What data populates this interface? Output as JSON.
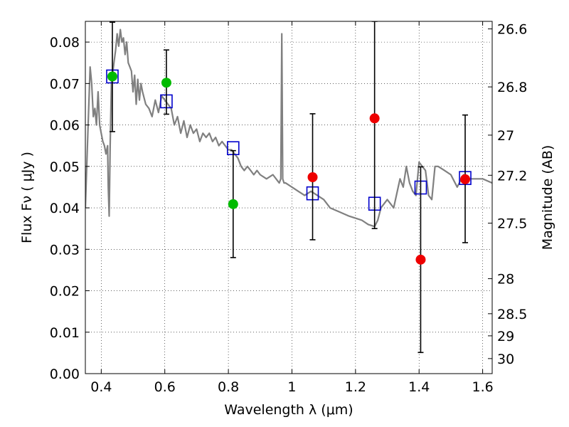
{
  "chart_data": {
    "type": "scatter",
    "xlabel": "Wavelength  λ (μm)",
    "ylabel": "Flux  Fν  ( μJy )",
    "y2label": "Magnitude (AB)",
    "xlim": [
      0.35,
      1.63
    ],
    "ylim": [
      0.0,
      0.085
    ],
    "grid": true,
    "x_ticks": [
      0.4,
      0.6,
      0.8,
      1.0,
      1.2,
      1.4,
      1.6
    ],
    "x_tick_labels": [
      "0.4",
      "0.6",
      "0.8",
      "1",
      "1.2",
      "1.4",
      "1.6"
    ],
    "y_ticks": [
      0.0,
      0.01,
      0.02,
      0.03,
      0.04,
      0.05,
      0.06,
      0.07,
      0.08
    ],
    "y_tick_labels": [
      "0.00",
      "0.01",
      "0.02",
      "0.03",
      "0.04",
      "0.05",
      "0.06",
      "0.07",
      "0.08"
    ],
    "mag_ticks": [
      26.6,
      26.8,
      27,
      27.2,
      27.5,
      28,
      28.5,
      29,
      30
    ],
    "mag_tick_labels": [
      "26.6",
      "26.8",
      "27",
      "27.2",
      "27.5",
      "28",
      "28.5",
      "29",
      "30"
    ],
    "series": [
      {
        "kind": "line",
        "color": "#808080",
        "x": [
          0.35,
          0.36,
          0.365,
          0.37,
          0.375,
          0.38,
          0.385,
          0.39,
          0.395,
          0.4,
          0.405,
          0.41,
          0.415,
          0.42,
          0.422,
          0.425,
          0.428,
          0.432,
          0.44,
          0.445,
          0.45,
          0.455,
          0.46,
          0.465,
          0.47,
          0.475,
          0.48,
          0.485,
          0.49,
          0.495,
          0.5,
          0.505,
          0.51,
          0.515,
          0.52,
          0.525,
          0.53,
          0.54,
          0.55,
          0.56,
          0.57,
          0.58,
          0.59,
          0.6,
          0.61,
          0.62,
          0.63,
          0.64,
          0.65,
          0.66,
          0.67,
          0.68,
          0.69,
          0.7,
          0.71,
          0.72,
          0.73,
          0.74,
          0.75,
          0.76,
          0.77,
          0.78,
          0.79,
          0.8,
          0.81,
          0.82,
          0.83,
          0.84,
          0.85,
          0.86,
          0.87,
          0.88,
          0.89,
          0.9,
          0.92,
          0.94,
          0.96,
          0.965,
          0.968,
          0.971,
          0.975,
          0.98,
          1.0,
          1.02,
          1.04,
          1.06,
          1.08,
          1.1,
          1.12,
          1.15,
          1.18,
          1.2,
          1.22,
          1.24,
          1.26,
          1.27,
          1.28,
          1.3,
          1.32,
          1.34,
          1.35,
          1.36,
          1.37,
          1.38,
          1.39,
          1.4,
          1.41,
          1.42,
          1.43,
          1.44,
          1.45,
          1.46,
          1.48,
          1.5,
          1.52,
          1.54,
          1.56,
          1.58,
          1.6,
          1.63
        ],
        "y": [
          0.04,
          0.063,
          0.074,
          0.07,
          0.062,
          0.064,
          0.06,
          0.068,
          0.06,
          0.058,
          0.056,
          0.055,
          0.053,
          0.055,
          0.045,
          0.038,
          0.055,
          0.07,
          0.075,
          0.078,
          0.082,
          0.079,
          0.083,
          0.08,
          0.081,
          0.077,
          0.08,
          0.075,
          0.074,
          0.073,
          0.068,
          0.072,
          0.065,
          0.071,
          0.066,
          0.07,
          0.068,
          0.065,
          0.064,
          0.062,
          0.066,
          0.063,
          0.067,
          0.066,
          0.065,
          0.064,
          0.06,
          0.062,
          0.058,
          0.061,
          0.057,
          0.06,
          0.058,
          0.059,
          0.056,
          0.058,
          0.057,
          0.058,
          0.056,
          0.057,
          0.055,
          0.056,
          0.055,
          0.054,
          0.054,
          0.053,
          0.052,
          0.05,
          0.049,
          0.05,
          0.049,
          0.048,
          0.049,
          0.048,
          0.047,
          0.048,
          0.046,
          0.047,
          0.082,
          0.047,
          0.046,
          0.046,
          0.045,
          0.044,
          0.043,
          0.044,
          0.043,
          0.042,
          0.04,
          0.039,
          0.038,
          0.0375,
          0.037,
          0.036,
          0.0355,
          0.037,
          0.04,
          0.042,
          0.04,
          0.047,
          0.045,
          0.05,
          0.046,
          0.044,
          0.043,
          0.051,
          0.05,
          0.049,
          0.043,
          0.042,
          0.05,
          0.05,
          0.049,
          0.048,
          0.045,
          0.048,
          0.047,
          0.047,
          0.047,
          0.046
        ]
      },
      {
        "kind": "squares",
        "color": "#0000cc",
        "x": [
          0.435,
          0.605,
          0.815,
          1.065,
          1.26,
          1.405,
          1.545
        ],
        "y": [
          0.0717,
          0.0657,
          0.0544,
          0.0435,
          0.041,
          0.0449,
          0.0472
        ]
      },
      {
        "kind": "errorbars",
        "color": "#000000",
        "x": [
          0.435,
          0.605,
          0.815,
          1.065,
          1.26,
          1.405,
          1.545
        ],
        "ylow": [
          0.0584,
          0.0626,
          0.028,
          0.0323,
          0.035,
          0.0051,
          0.0316
        ],
        "yhigh": [
          0.0848,
          0.0781,
          0.0538,
          0.0627,
          0.085,
          0.0499,
          0.0624
        ]
      },
      {
        "kind": "circles",
        "color": "#00bb00",
        "x": [
          0.435,
          0.605,
          0.815
        ],
        "y": [
          0.0717,
          0.0702,
          0.0409
        ]
      },
      {
        "kind": "circles",
        "color": "#ee0000",
        "x": [
          1.065,
          1.26,
          1.405,
          1.545
        ],
        "y": [
          0.0474,
          0.0616,
          0.0275,
          0.0469
        ]
      }
    ]
  }
}
